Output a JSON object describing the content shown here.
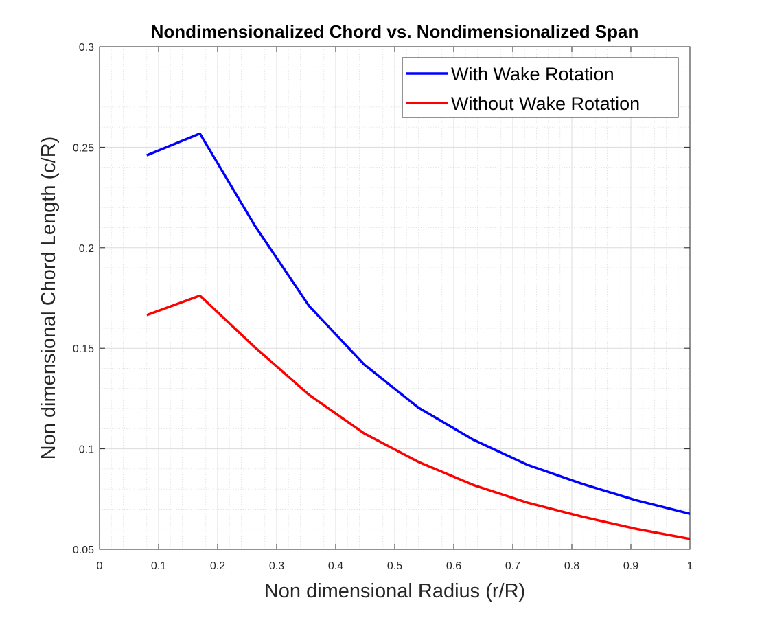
{
  "chart_data": {
    "type": "line",
    "title": "Nondimensionalized Chord vs. Nondimensionalized Span",
    "xlabel": "Non dimensional Radius (r/R)",
    "ylabel": "Non dimensional Chord Length (c/R)",
    "xlim": [
      0,
      1
    ],
    "ylim": [
      0.05,
      0.3
    ],
    "xticks": [
      0,
      0.1,
      0.2,
      0.3,
      0.4,
      0.5,
      0.6,
      0.7,
      0.8,
      0.9,
      1
    ],
    "xtick_labels": [
      "0",
      "0.1",
      "0.2",
      "0.3",
      "0.4",
      "0.5",
      "0.6",
      "0.7",
      "0.8",
      "0.9",
      "1"
    ],
    "yticks": [
      0.05,
      0.1,
      0.15,
      0.2,
      0.25,
      0.3
    ],
    "ytick_labels": [
      "0.05",
      "0.1",
      "0.15",
      "0.2",
      "0.25",
      "0.3"
    ],
    "grid": true,
    "minor_grid": true,
    "legend_position": "top-right",
    "series": [
      {
        "name": "With Wake Rotation",
        "color": "#0000ff",
        "x": [
          0.08,
          0.17,
          0.263,
          0.355,
          0.448,
          0.54,
          0.633,
          0.725,
          0.818,
          0.908,
          1.0
        ],
        "y": [
          0.246,
          0.2568,
          0.211,
          0.171,
          0.142,
          0.1205,
          0.1045,
          0.092,
          0.0825,
          0.0745,
          0.0677
        ]
      },
      {
        "name": "Without Wake Rotation",
        "color": "#ff0000",
        "x": [
          0.08,
          0.17,
          0.263,
          0.355,
          0.448,
          0.54,
          0.633,
          0.725,
          0.818,
          0.908,
          1.0
        ],
        "y": [
          0.1665,
          0.1762,
          0.1505,
          0.1268,
          0.1077,
          0.0935,
          0.082,
          0.0732,
          0.0662,
          0.0602,
          0.0552
        ]
      }
    ]
  }
}
